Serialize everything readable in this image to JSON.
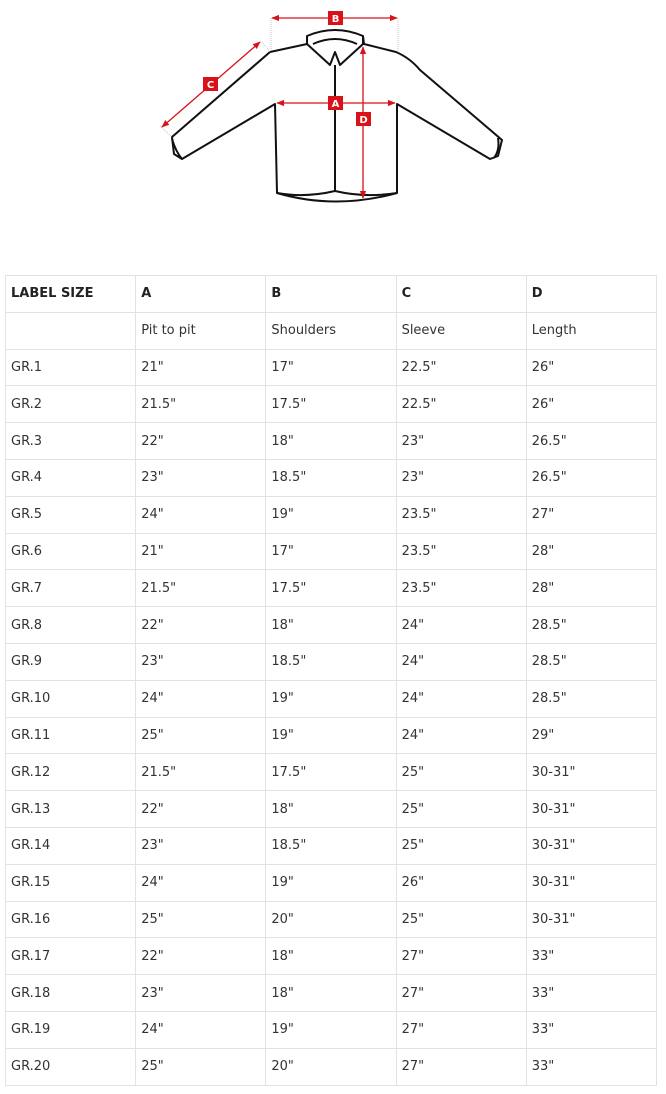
{
  "diagram": {
    "labels": {
      "a": "A",
      "b": "B",
      "c": "C",
      "d": "D"
    },
    "accent_color": "#d9121a"
  },
  "table": {
    "header": [
      "LABEL SIZE",
      "A",
      "B",
      "C",
      "D"
    ],
    "subheader": [
      "",
      "Pit to pit",
      "Shoulders",
      "Sleeve",
      "Length"
    ],
    "rows": [
      [
        "GR.1",
        "21\"",
        "17\"",
        "22.5\"",
        "26\""
      ],
      [
        "GR.2",
        "21.5\"",
        "17.5\"",
        "22.5\"",
        "26\""
      ],
      [
        "GR.3",
        "22\"",
        "18\"",
        "23\"",
        "26.5\""
      ],
      [
        "GR.4",
        "23\"",
        "18.5\"",
        "23\"",
        "26.5\""
      ],
      [
        "GR.5",
        "24\"",
        "19\"",
        "23.5\"",
        "27\""
      ],
      [
        "GR.6",
        "21\"",
        "17\"",
        "23.5\"",
        "28\""
      ],
      [
        "GR.7",
        "21.5\"",
        "17.5\"",
        "23.5\"",
        "28\""
      ],
      [
        "GR.8",
        "22\"",
        "18\"",
        "24\"",
        "28.5\""
      ],
      [
        "GR.9",
        "23\"",
        "18.5\"",
        "24\"",
        "28.5\""
      ],
      [
        "GR.10",
        "24\"",
        "19\"",
        "24\"",
        "28.5\""
      ],
      [
        "GR.11",
        "25\"",
        "19\"",
        "24\"",
        "29\""
      ],
      [
        "GR.12",
        "21.5\"",
        "17.5\"",
        "25\"",
        "30-31\""
      ],
      [
        "GR.13",
        "22\"",
        "18\"",
        "25\"",
        "30-31\""
      ],
      [
        "GR.14",
        "23\"",
        "18.5\"",
        "25\"",
        "30-31\""
      ],
      [
        "GR.15",
        "24\"",
        "19\"",
        "26\"",
        "30-31\""
      ],
      [
        "GR.16",
        "25\"",
        "20\"",
        "25\"",
        "30-31\""
      ],
      [
        "GR.17",
        "22\"",
        "18\"",
        "27\"",
        "33\""
      ],
      [
        "GR.18",
        "23\"",
        "18\"",
        "27\"",
        "33\""
      ],
      [
        "GR.19",
        "24\"",
        "19\"",
        "27\"",
        "33\""
      ],
      [
        "GR.20",
        "25\"",
        "20\"",
        "27\"",
        "33\""
      ]
    ]
  }
}
